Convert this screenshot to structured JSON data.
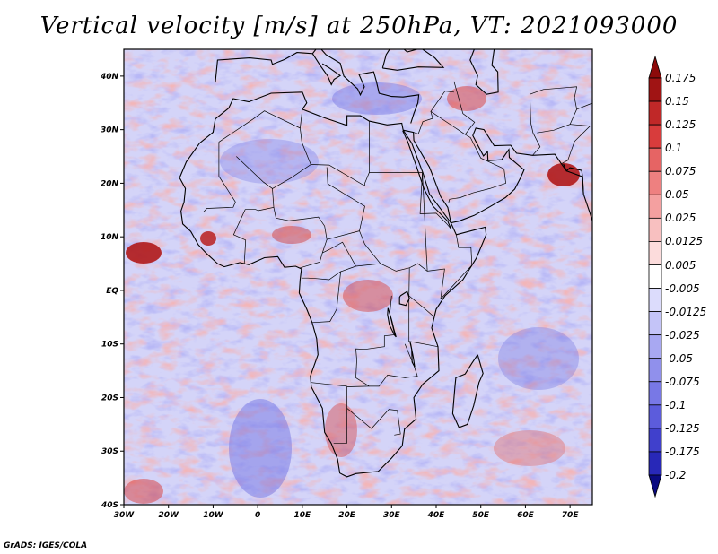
{
  "title": "Vertical velocity [m/s] at 250hPa, VT: 2021093000",
  "credit": "GrADS: IGES/COLA",
  "map": {
    "lon_range": [
      -30,
      75
    ],
    "lat_range": [
      -40,
      45
    ],
    "lon_ticks": [
      {
        "value": -30,
        "label": "30W"
      },
      {
        "value": -20,
        "label": "20W"
      },
      {
        "value": -10,
        "label": "10W"
      },
      {
        "value": 0,
        "label": "0"
      },
      {
        "value": 10,
        "label": "10E"
      },
      {
        "value": 20,
        "label": "20E"
      },
      {
        "value": 30,
        "label": "30E"
      },
      {
        "value": 40,
        "label": "40E"
      },
      {
        "value": 50,
        "label": "50E"
      },
      {
        "value": 60,
        "label": "60E"
      },
      {
        "value": 70,
        "label": "70E"
      }
    ],
    "lat_ticks": [
      {
        "value": 40,
        "label": "40N"
      },
      {
        "value": 30,
        "label": "30N"
      },
      {
        "value": 20,
        "label": "20N"
      },
      {
        "value": 10,
        "label": "10N"
      },
      {
        "value": 0,
        "label": "EQ"
      },
      {
        "value": -10,
        "label": "10S"
      },
      {
        "value": -20,
        "label": "20S"
      },
      {
        "value": -30,
        "label": "30S"
      },
      {
        "value": -40,
        "label": "40S"
      }
    ]
  },
  "colorbar": {
    "labels": [
      "0.175",
      "0.15",
      "0.125",
      "0.1",
      "0.075",
      "0.05",
      "0.025",
      "0.0125",
      "0.005",
      "-0.005",
      "-0.0125",
      "-0.025",
      "-0.05",
      "-0.075",
      "-0.1",
      "-0.125",
      "-0.175",
      "-0.2"
    ],
    "colors": [
      "#a01414",
      "#c02828",
      "#d83c3c",
      "#e66464",
      "#ee8080",
      "#f4a0a0",
      "#f8c0c0",
      "#fcdcdc",
      "#ffffff",
      "#dcdcfc",
      "#c4c4f8",
      "#a8a8f2",
      "#9090ec",
      "#7878e6",
      "#5c5cdc",
      "#4040cc",
      "#2828b8",
      "#1010a0"
    ],
    "low_cap_color": "#0a0a80",
    "high_cap_color": "#8c0a0a"
  },
  "colors": {
    "ocean_base": "#d4d4f8",
    "positive": "#e88888",
    "negative": "#8a8ae8",
    "coast": "#000000"
  }
}
